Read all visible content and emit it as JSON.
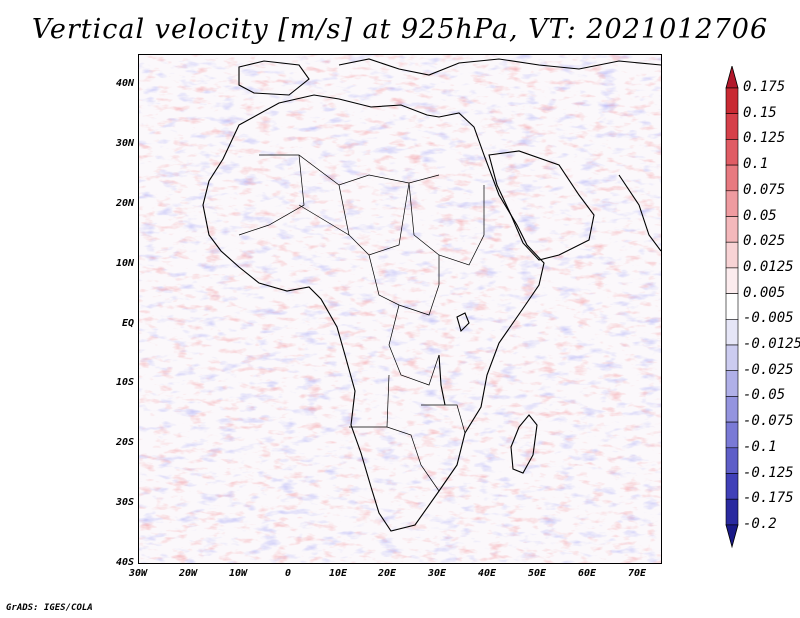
{
  "title": "Vertical velocity [m/s] at 925hPa, VT: 2021012706",
  "credit": "GrADS: IGES/COLA",
  "map": {
    "lat_labels": [
      "40N",
      "30N",
      "20N",
      "10N",
      "EQ",
      "10S",
      "20S",
      "30S",
      "40S"
    ],
    "lon_labels": [
      "30W",
      "20W",
      "10W",
      "0",
      "10E",
      "20E",
      "30E",
      "40E",
      "50E",
      "60E",
      "70E"
    ]
  },
  "colorbar": {
    "labels": [
      "0.175",
      "0.15",
      "0.125",
      "0.1",
      "0.075",
      "0.05",
      "0.025",
      "0.0125",
      "0.005",
      "-0.005",
      "-0.0125",
      "-0.025",
      "-0.05",
      "-0.075",
      "-0.1",
      "-0.125",
      "-0.175",
      "-0.2"
    ],
    "colors": [
      "#b2182b",
      "#c92a33",
      "#d6404a",
      "#e05c64",
      "#e87a80",
      "#ef9ba0",
      "#f4b8bb",
      "#f8d3d5",
      "#fcecee",
      "#ffffff",
      "#e6e6f7",
      "#ccccf0",
      "#b0b0e8",
      "#9494df",
      "#7a7ad6",
      "#5e5ec8",
      "#4040b8",
      "#2a2aa0",
      "#1a1a88"
    ]
  },
  "chart_data": {
    "type": "heatmap",
    "title": "Vertical velocity [m/s] at 925hPa, VT: 2021012706",
    "variable": "Vertical velocity",
    "units": "m/s",
    "level": "925hPa",
    "valid_time": "2021012706",
    "x_range_deg": [
      -30,
      75
    ],
    "y_range_deg": [
      -40,
      45
    ],
    "contour_levels": [
      -0.2,
      -0.175,
      -0.125,
      -0.1,
      -0.075,
      -0.05,
      -0.025,
      -0.0125,
      -0.005,
      0.005,
      0.0125,
      0.025,
      0.05,
      0.075,
      0.1,
      0.125,
      0.15,
      0.175
    ]
  }
}
